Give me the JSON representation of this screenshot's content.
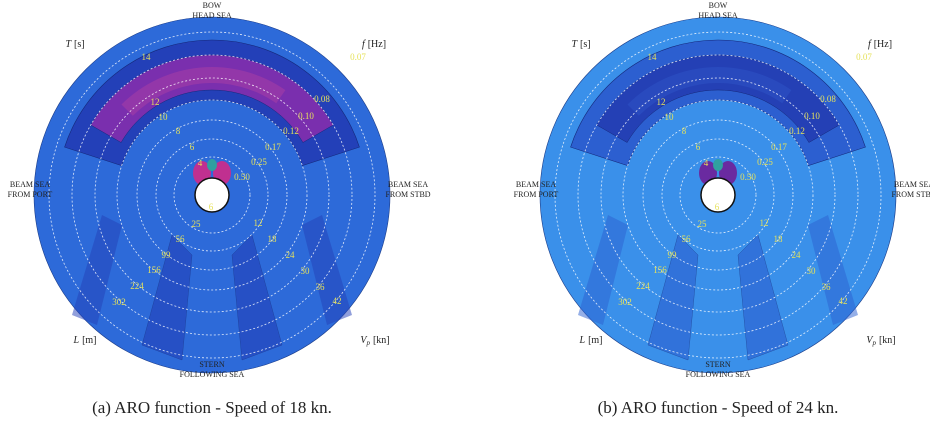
{
  "panels": [
    {
      "caption": "(a) ARO function - Speed of 18 kn.",
      "directions": {
        "top": [
          "BOW",
          "HEAD SEA"
        ],
        "bottom": [
          "STERN",
          "FOLLOWING SEA"
        ],
        "left": [
          "BEAM SEA",
          "FROM PORT"
        ],
        "right": [
          "BEAM SEA",
          "FROM STBD"
        ]
      },
      "corners": {
        "top_left": {
          "symbol": "T",
          "unit": "[s]"
        },
        "top_right": {
          "symbol": "f",
          "unit": "[Hz]"
        },
        "bottom_left": {
          "symbol": "L",
          "unit": "[m]"
        },
        "bottom_right": {
          "symbol": "V",
          "sub": "p",
          "unit": "[kn]"
        }
      },
      "ring_labels": {
        "period": [
          "14",
          "12",
          "10",
          "8",
          "6",
          "4"
        ],
        "frequency": [
          "0.07",
          "0.08",
          "0.10",
          "0.12",
          "0.17",
          "0.25",
          "0.50"
        ],
        "length": [
          "6",
          "25",
          "56",
          "99",
          "156",
          "224",
          "302"
        ],
        "speed": [
          "12",
          "18",
          "24",
          "30",
          "36",
          "42"
        ]
      }
    },
    {
      "caption": "(b) ARO function - Speed of 24 kn.",
      "directions": {
        "top": [
          "BOW",
          "HEAD SEA"
        ],
        "bottom": [
          "STERN",
          "FOLLOWING SEA"
        ],
        "left": [
          "BEAM SEA",
          "FROM PORT"
        ],
        "right": [
          "BEAM SEA",
          "FROM STBD"
        ]
      },
      "corners": {
        "top_left": {
          "symbol": "T",
          "unit": "[s]"
        },
        "top_right": {
          "symbol": "f",
          "unit": "[Hz]"
        },
        "bottom_left": {
          "symbol": "L",
          "unit": "[m]"
        },
        "bottom_right": {
          "symbol": "V",
          "sub": "p",
          "unit": "[kn]"
        }
      },
      "ring_labels": {
        "period": [
          "14",
          "12",
          "10",
          "8",
          "6",
          "4"
        ],
        "frequency": [
          "0.07",
          "0.08",
          "0.10",
          "0.12",
          "0.17",
          "0.25",
          "0.50"
        ],
        "length": [
          "6",
          "25",
          "56",
          "99",
          "156",
          "224",
          "302"
        ],
        "speed": [
          "12",
          "18",
          "24",
          "30",
          "36",
          "42"
        ]
      }
    }
  ]
}
